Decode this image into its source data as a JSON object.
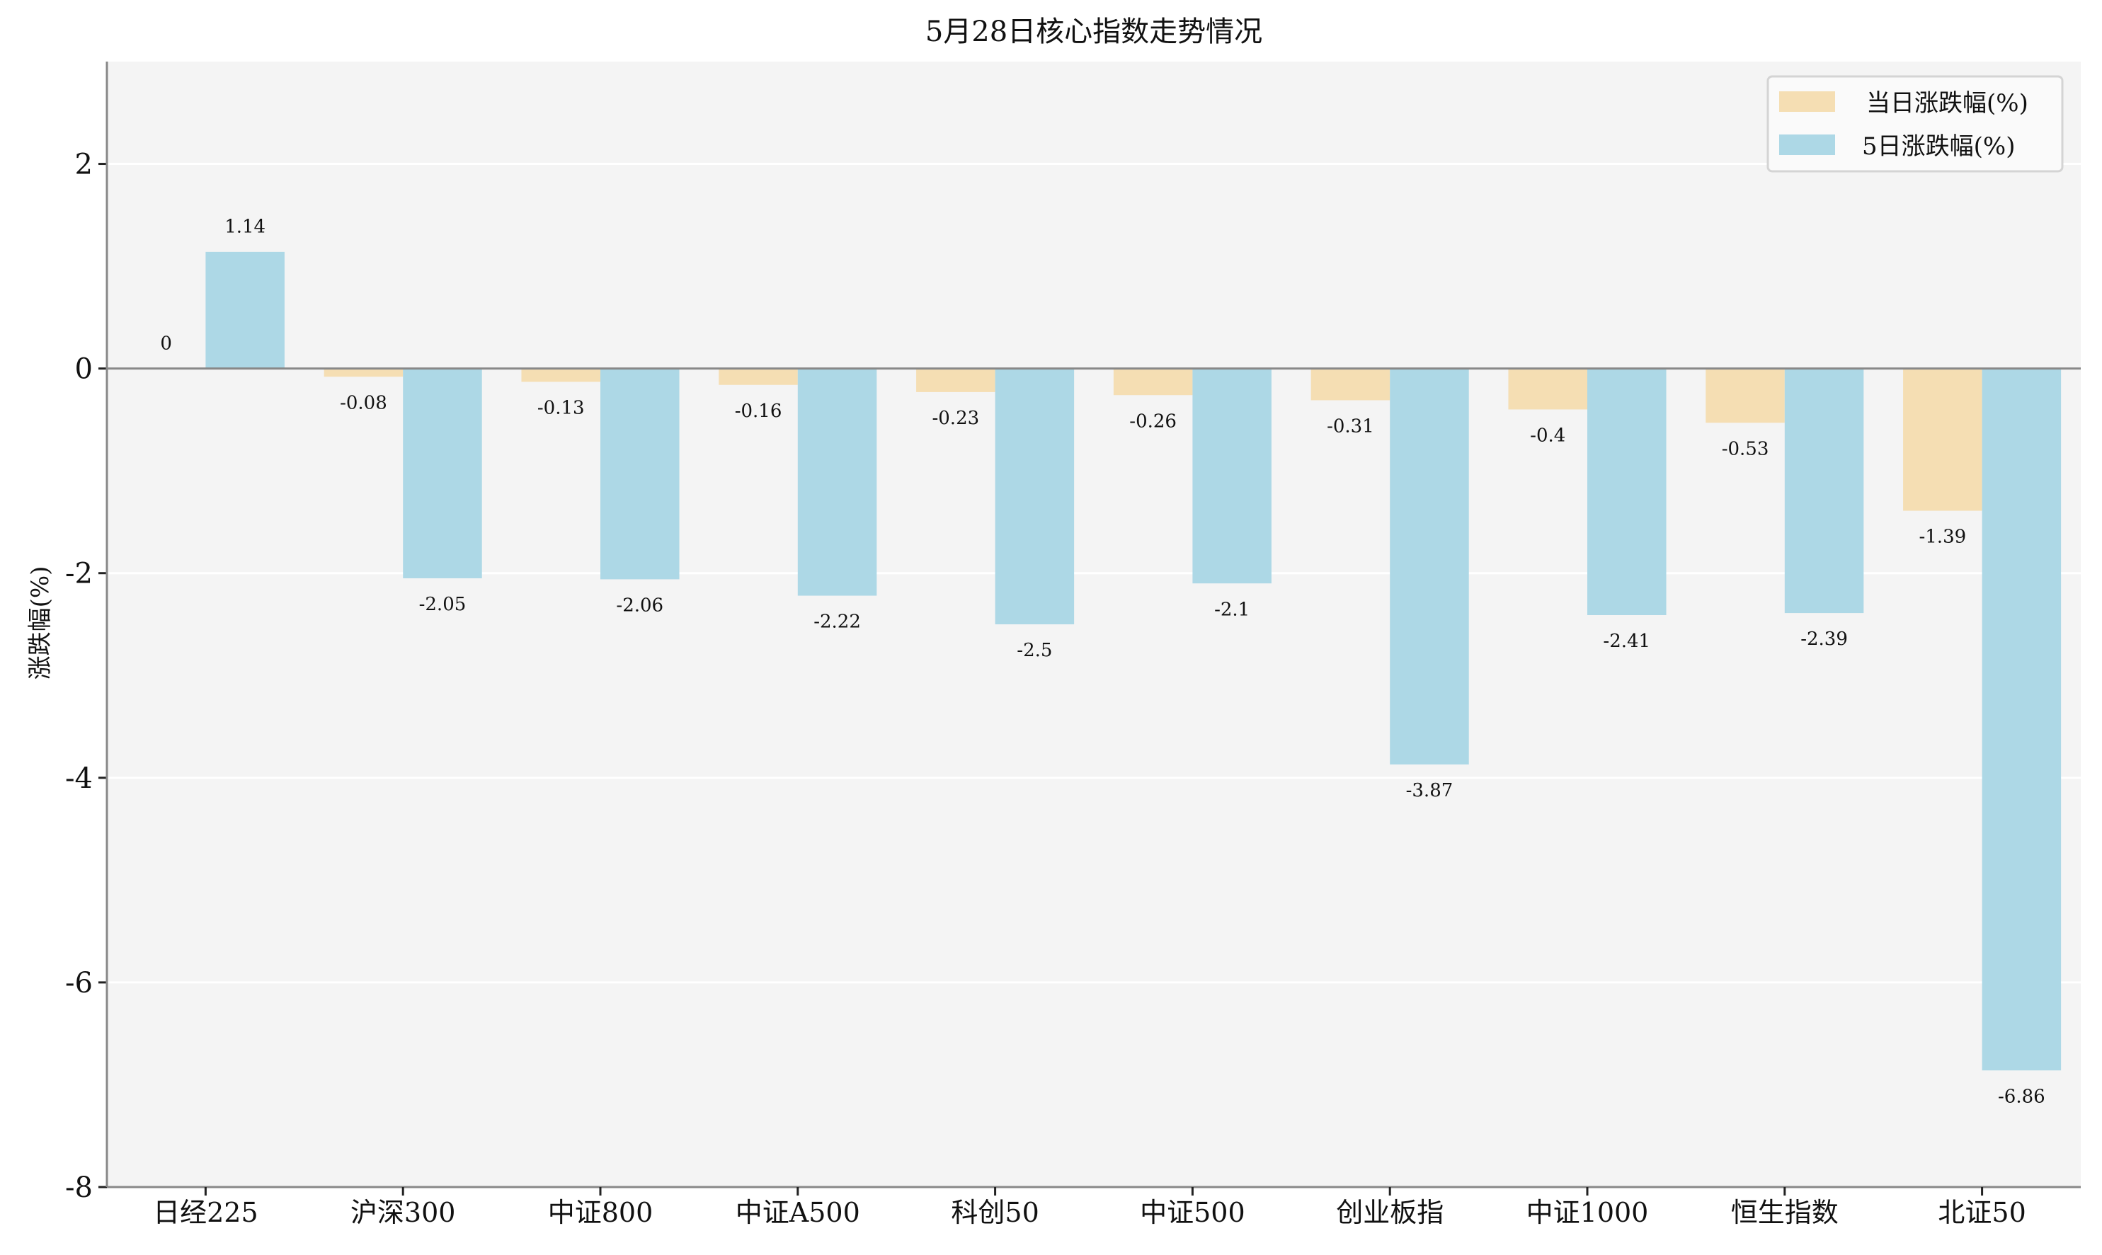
{
  "chart_data": {
    "type": "bar",
    "title": "5月28日核心指数走势情况",
    "xlabel": "",
    "ylabel": "涨跌幅(%)",
    "ylim": [
      -8,
      3
    ],
    "yticks": [
      2,
      0,
      -2,
      -4,
      -6,
      -8
    ],
    "grid": true,
    "legend_position": "top-right",
    "categories": [
      "日经225",
      "沪深300",
      "中证800",
      "中证A500",
      "科创50",
      "中证500",
      "创业板指",
      "中证1000",
      "恒生指数",
      "北证50"
    ],
    "series": [
      {
        "name": "当日涨跌幅(%)",
        "color": "#f5deb3",
        "values": [
          0.0,
          -0.08,
          -0.13,
          -0.16,
          -0.23,
          -0.26,
          -0.31,
          -0.4,
          -0.53,
          -1.39
        ]
      },
      {
        "name": "5日涨跌幅(%)",
        "color": "#add8e6",
        "values": [
          1.14,
          -2.05,
          -2.06,
          -2.22,
          -2.5,
          -2.1,
          -3.87,
          -2.41,
          -2.39,
          -6.86
        ]
      }
    ]
  }
}
